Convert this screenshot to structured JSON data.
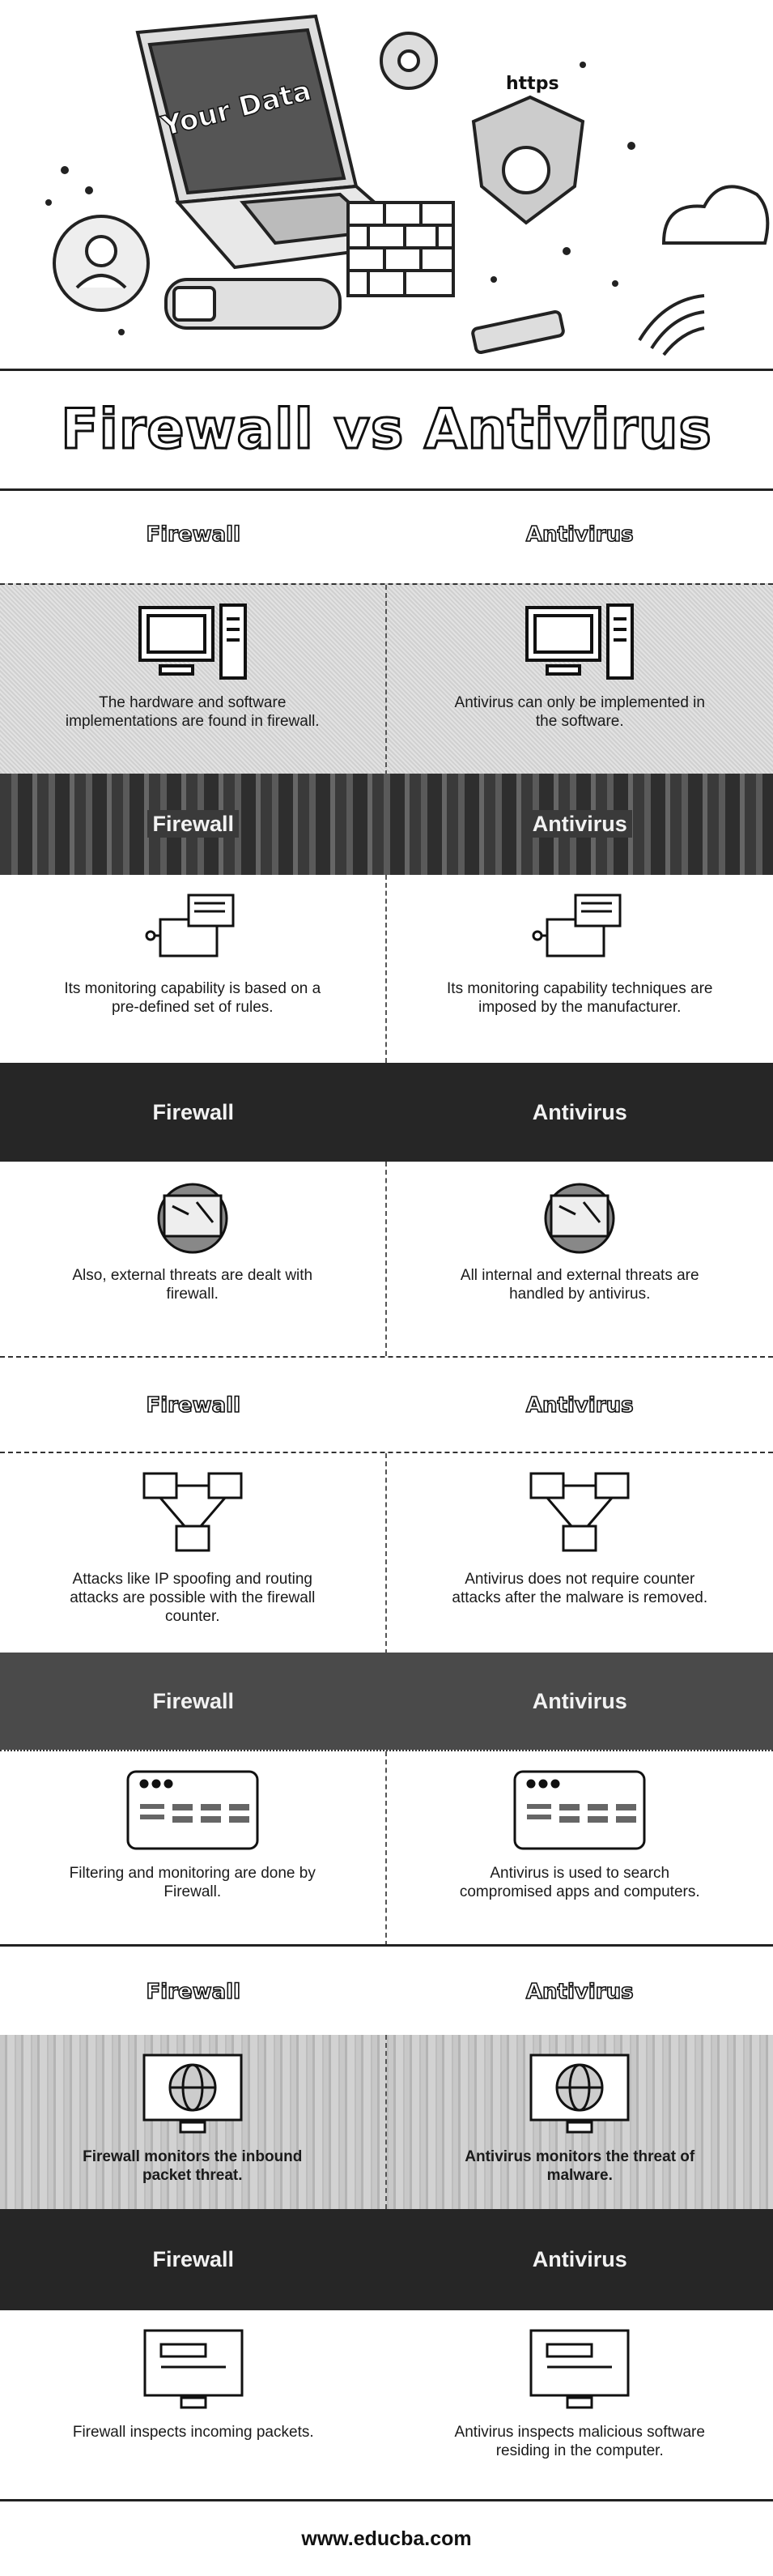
{
  "hero": {
    "laptop_text": "Your Data",
    "shield_text": "https"
  },
  "title": "Firewall vs Antivirus",
  "column_labels": {
    "left": "Firewall",
    "right": "Antivirus"
  },
  "rows": [
    {
      "left": "The hardware and software implementations are found in firewall.",
      "right": "Antivirus can only be implemented in the software.",
      "icon": "computer-icon"
    },
    {
      "left": "Its monitoring capability is based on a pre-defined set of rules.",
      "right": "Its monitoring capability techniques are imposed by the manufacturer.",
      "icon": "monitoring-icon"
    },
    {
      "left": "Also, external threats are dealt with firewall.",
      "right": "All internal and external threats are handled by antivirus.",
      "icon": "person-screen-icon"
    },
    {
      "left": "Attacks like IP spoofing and routing attacks are possible with the firewall counter.",
      "right": "Antivirus does not require counter attacks after the malware is removed.",
      "icon": "network-icon"
    },
    {
      "left": "Filtering and monitoring are done by Firewall.",
      "right": "Antivirus is used to search compromised apps and computers.",
      "icon": "browser-window-icon"
    },
    {
      "left": "Firewall monitors the inbound packet threat.",
      "right": "Antivirus monitors the threat of malware.",
      "icon": "globe-monitor-icon"
    },
    {
      "left": "Firewall inspects incoming packets.",
      "right": "Antivirus inspects malicious software residing in the computer.",
      "icon": "monitor-icon"
    }
  ],
  "footer": "www.educba.com"
}
